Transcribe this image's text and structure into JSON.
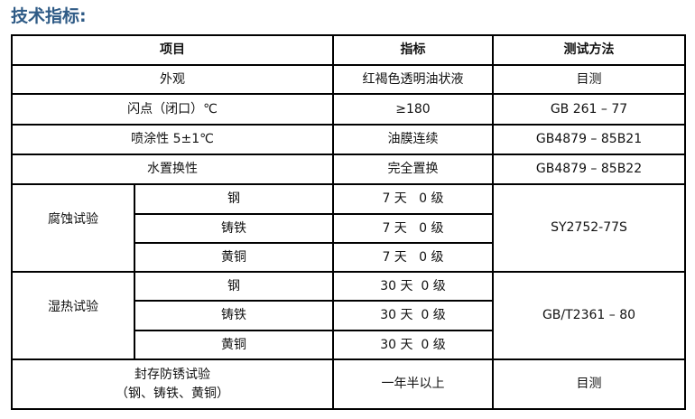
{
  "title": "技术指标:",
  "headers": [
    "项目",
    "指标",
    "测试方法"
  ],
  "simple_rows": [
    {
      "item": "外观",
      "spec": "红褐色透明油状液",
      "method": "目测"
    },
    {
      "item": "闪点（闭口）℃",
      "spec": "≥180",
      "method": "GB 261 – 77"
    },
    {
      "item": "喷涂性 5±1℃",
      "spec": "油膜连续",
      "method": "GB4879 – 85B21"
    },
    {
      "item": "水置换性",
      "spec": "完全置换",
      "method": "GB4879 – 85B22"
    }
  ],
  "corrosion": {
    "item": "腐蚀试验",
    "method": "SY2752-77S",
    "subs": [
      {
        "metal": "钢",
        "spec": "7 天   0 级"
      },
      {
        "metal": "铸铁",
        "spec": "7 天   0 级"
      },
      {
        "metal": "黄铜",
        "spec": "7 天   0 级"
      }
    ]
  },
  "humidity": {
    "item": "湿热试验",
    "method": "GB/T2361 – 80",
    "subs": [
      {
        "metal": "钢",
        "spec": "30 天  0 级"
      },
      {
        "metal": "铸铁",
        "spec": "30 天  0 级"
      },
      {
        "metal": "黄铜",
        "spec": "30 天  0 级"
      }
    ]
  },
  "storage": {
    "item_line1": "封存防锈试验",
    "item_line2": "（钢、铸铁、黄铜）",
    "spec": "一年半以上",
    "method": "目测"
  }
}
